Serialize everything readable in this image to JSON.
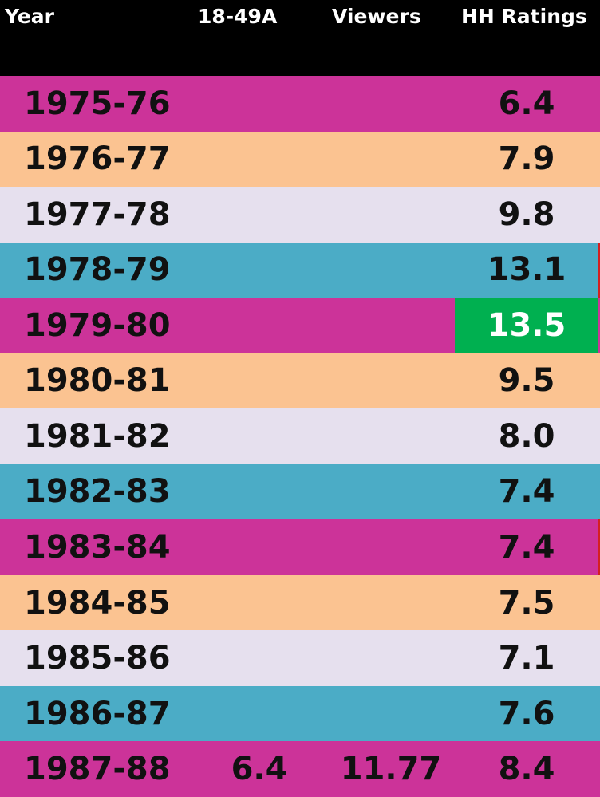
{
  "header": {
    "year": "Year",
    "demo": "18-49A",
    "viewers": "Viewers",
    "hh": "HH Ratings"
  },
  "rows": [
    {
      "year": "1975-76",
      "demo": "",
      "viewers": "",
      "hh": "6.4"
    },
    {
      "year": "1976-77",
      "demo": "",
      "viewers": "",
      "hh": "7.9"
    },
    {
      "year": "1977-78",
      "demo": "",
      "viewers": "",
      "hh": "9.8"
    },
    {
      "year": "1978-79",
      "demo": "",
      "viewers": "",
      "hh": "13.1"
    },
    {
      "year": "1979-80",
      "demo": "",
      "viewers": "",
      "hh": "13.5"
    },
    {
      "year": "1980-81",
      "demo": "",
      "viewers": "",
      "hh": "9.5"
    },
    {
      "year": "1981-82",
      "demo": "",
      "viewers": "",
      "hh": "8.0"
    },
    {
      "year": "1982-83",
      "demo": "",
      "viewers": "",
      "hh": "7.4"
    },
    {
      "year": "1983-84",
      "demo": "",
      "viewers": "",
      "hh": "7.4"
    },
    {
      "year": "1984-85",
      "demo": "",
      "viewers": "",
      "hh": "7.5"
    },
    {
      "year": "1985-86",
      "demo": "",
      "viewers": "",
      "hh": "7.1"
    },
    {
      "year": "1986-87",
      "demo": "",
      "viewers": "",
      "hh": "7.6"
    },
    {
      "year": "1987-88",
      "demo": "6.4",
      "viewers": "11.77",
      "hh": "8.4"
    }
  ],
  "colors": {
    "header_bg": "#000000",
    "magenta": "#cc3399",
    "peach": "#fbc391",
    "lavender": "#e6e0ee",
    "teal": "#4bacc6",
    "highlight": "#00b050",
    "edge_mark": "#d42020"
  }
}
